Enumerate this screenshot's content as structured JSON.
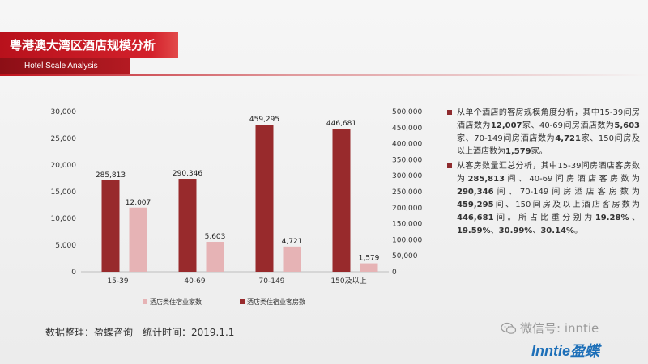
{
  "header": {
    "title": "粤港澳大湾区酒店规模分析",
    "subtitle": "Hotel Scale Analysis"
  },
  "colors": {
    "title_red": "#c8161d",
    "bar_light": "#e6b3b5",
    "bar_dark": "#982a2c",
    "bullet": "#8e2b2e"
  },
  "chart_data": {
    "type": "bar",
    "categories": [
      "15-39",
      "40-69",
      "70-149",
      "150及以上"
    ],
    "series": [
      {
        "name": "酒店类住宿业家数",
        "axis": "left",
        "values": [
          12007,
          5603,
          4721,
          1579
        ],
        "labels": [
          "12,007",
          "5,603",
          "4,721",
          "1,579"
        ]
      },
      {
        "name": "酒店类住宿业客房数",
        "axis": "right",
        "values": [
          285813,
          290346,
          459295,
          446681
        ],
        "labels": [
          "285,813",
          "290,346",
          "459,295",
          "446,681"
        ]
      }
    ],
    "y_left": {
      "min": 0,
      "max": 30000,
      "ticks": [
        "0",
        "5,000",
        "10,000",
        "15,000",
        "20,000",
        "25,000",
        "30,000"
      ]
    },
    "y_right": {
      "min": 0,
      "max": 500000,
      "ticks": [
        "0",
        "50,000",
        "100,000",
        "150,000",
        "200,000",
        "250,000",
        "300,000",
        "350,000",
        "400,000",
        "450,000",
        "500,000"
      ]
    },
    "grid": false,
    "legend_position": "bottom"
  },
  "notes": [
    {
      "parts": [
        {
          "t": "从单个酒店的客房规模角度分析，其中15-39间房酒店数为",
          "b": false
        },
        {
          "t": "12,007",
          "b": true
        },
        {
          "t": "家、40-69间房酒店数为",
          "b": false
        },
        {
          "t": "5,603",
          "b": true
        },
        {
          "t": "家、70-149间房酒店数为",
          "b": false
        },
        {
          "t": "4,721",
          "b": true
        },
        {
          "t": "家、150间房及以上酒店数为",
          "b": false
        },
        {
          "t": "1,579",
          "b": true
        },
        {
          "t": "家。",
          "b": false
        }
      ]
    },
    {
      "parts": [
        {
          "t": "从客房数量汇总分析，其中15-39间房酒店客房数为",
          "b": false
        },
        {
          "t": "285,813",
          "b": true
        },
        {
          "t": "间、40-69间房酒店客房数为",
          "b": false
        },
        {
          "t": "290,346",
          "b": true
        },
        {
          "t": "间、70-149间房酒店客房数为",
          "b": false
        },
        {
          "t": "459,295",
          "b": true
        },
        {
          "t": "间、150间房及以上酒店客房数为",
          "b": false
        },
        {
          "t": "446,681",
          "b": true
        },
        {
          "t": "间。所占比重分别为",
          "b": false
        },
        {
          "t": "19.28%",
          "b": true
        },
        {
          "t": "、",
          "b": false
        },
        {
          "t": "19.59%",
          "b": true
        },
        {
          "t": "、",
          "b": false
        },
        {
          "t": "30.99%",
          "b": true
        },
        {
          "t": "、",
          "b": false
        },
        {
          "t": "30.14%",
          "b": true
        },
        {
          "t": "。",
          "b": false
        }
      ]
    }
  ],
  "footer": {
    "source": "数据整理：盈蝶咨询　统计时间：2019.1.1"
  },
  "watermark": {
    "text": "微信号: inntie",
    "icon": "wechat-icon"
  },
  "logo": {
    "text": "Inntie盈蝶"
  }
}
